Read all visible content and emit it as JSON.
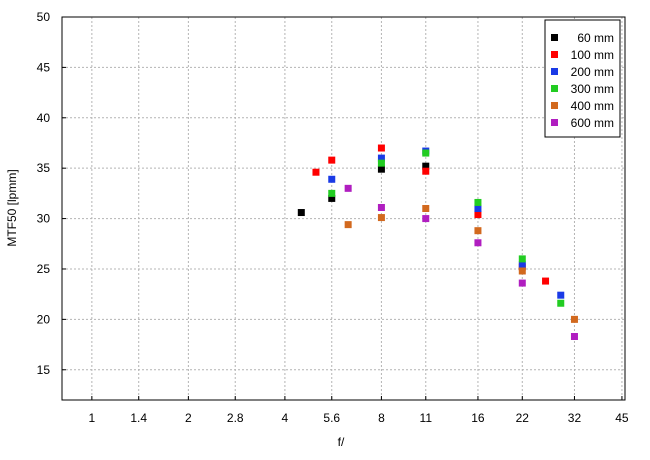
{
  "chart_data": {
    "type": "scatter",
    "title": "",
    "xlabel": "f/",
    "ylabel": "MTF50 [lpmm]",
    "x_scale": "log",
    "xlim": [
      0.807,
      46
    ],
    "ylim": [
      12,
      50
    ],
    "x_ticks": [
      1,
      1.4,
      2,
      2.8,
      4,
      5.6,
      8,
      11,
      16,
      22,
      32,
      45
    ],
    "x_tick_labels": [
      "1",
      "1.4",
      "2",
      "2.8",
      "4",
      "5.6",
      "8",
      "11",
      "16",
      "22",
      "32",
      "45"
    ],
    "y_ticks": [
      15,
      20,
      25,
      30,
      35,
      40,
      45,
      50
    ],
    "y_tick_labels": [
      "15",
      "20",
      "25",
      "30",
      "35",
      "40",
      "45",
      "50"
    ],
    "grid": true,
    "legend_position": "top-right",
    "series": [
      {
        "name": "60 mm",
        "color": "#000000",
        "points": [
          [
            4.5,
            30.6
          ],
          [
            5.6,
            32.0
          ],
          [
            8,
            34.9
          ],
          [
            11,
            35.2
          ]
        ]
      },
      {
        "name": "100 mm",
        "color": "#ff0000",
        "points": [
          [
            5.0,
            34.6
          ],
          [
            5.6,
            35.8
          ],
          [
            8,
            37.0
          ],
          [
            11,
            34.7
          ],
          [
            16,
            30.4
          ],
          [
            22,
            25.2
          ],
          [
            26,
            23.8
          ]
        ]
      },
      {
        "name": "200 mm",
        "color": "#1a3ae6",
        "points": [
          [
            5.6,
            33.9
          ],
          [
            8,
            36.0
          ],
          [
            11,
            36.7
          ],
          [
            16,
            31.0
          ],
          [
            22,
            25.4
          ],
          [
            29,
            22.4
          ]
        ]
      },
      {
        "name": "300 mm",
        "color": "#22cc22",
        "points": [
          [
            5.6,
            32.5
          ],
          [
            8,
            35.5
          ],
          [
            11,
            36.5
          ],
          [
            16,
            31.6
          ],
          [
            22,
            26.0
          ],
          [
            29,
            21.6
          ]
        ]
      },
      {
        "name": "400 mm",
        "color": "#d2691e",
        "points": [
          [
            6.3,
            29.4
          ],
          [
            8,
            30.1
          ],
          [
            11,
            31.0
          ],
          [
            16,
            28.8
          ],
          [
            22,
            24.8
          ],
          [
            32,
            20.0
          ]
        ]
      },
      {
        "name": "600 mm",
        "color": "#b01ec0",
        "points": [
          [
            6.3,
            33.0
          ],
          [
            8,
            31.1
          ],
          [
            11,
            30.0
          ],
          [
            16,
            27.6
          ],
          [
            22,
            23.6
          ],
          [
            32,
            18.3
          ]
        ]
      }
    ]
  }
}
